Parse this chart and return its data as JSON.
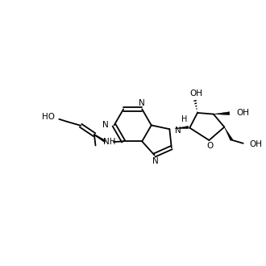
{
  "background_color": "#ffffff",
  "line_color": "#000000",
  "line_width": 1.3,
  "font_size": 7.5,
  "figure_size": [
    3.3,
    3.3
  ],
  "dpi": 100,
  "xlim": [
    0,
    10
  ],
  "ylim": [
    0,
    10
  ]
}
